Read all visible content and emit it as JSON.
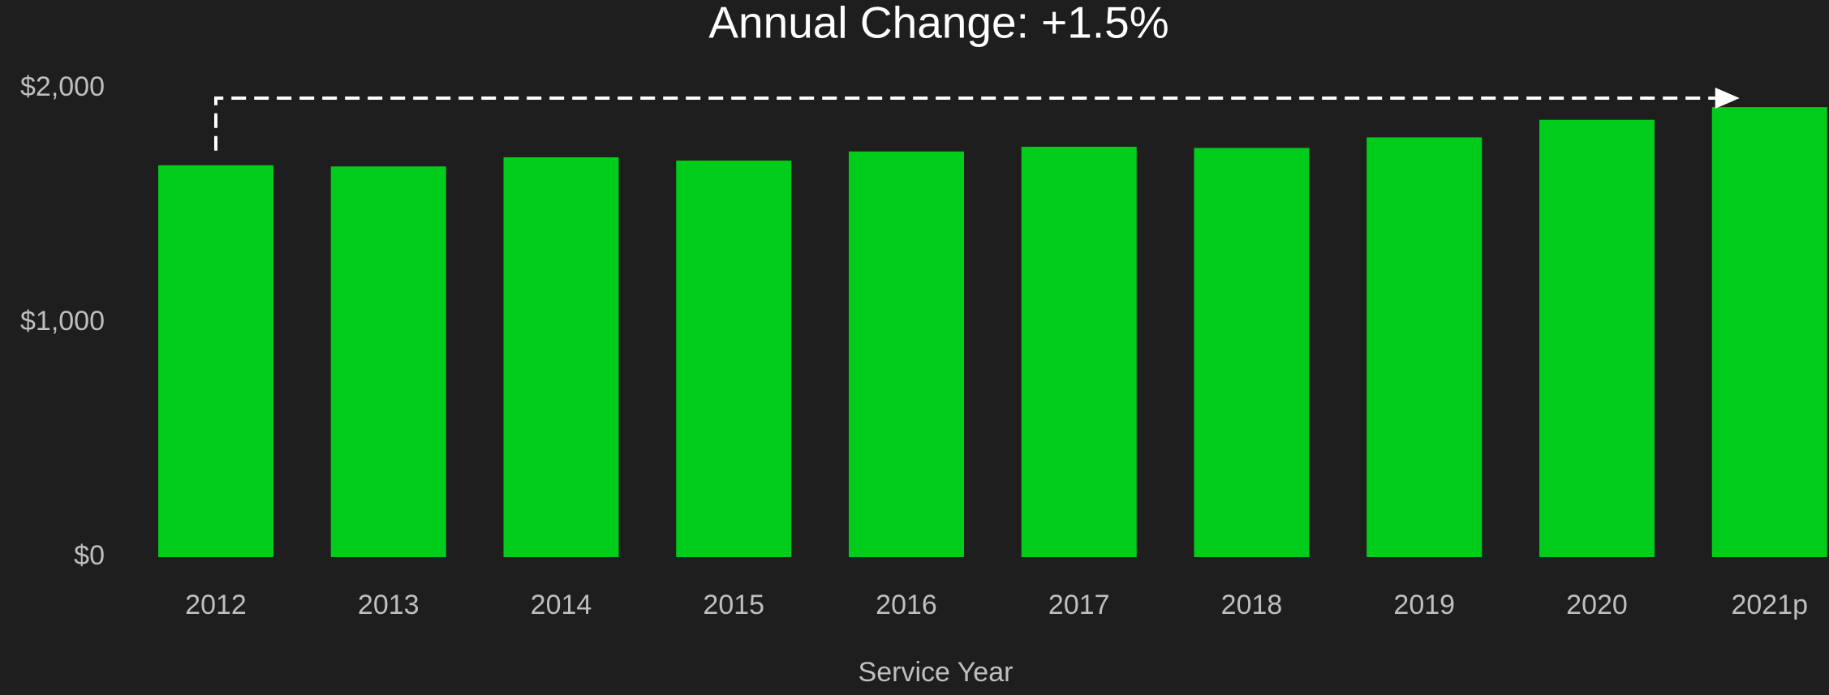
{
  "chart_data": {
    "type": "bar",
    "title": "Annual Change: +1.5%",
    "x_label": "Service Year",
    "categories": [
      "2012",
      "2013",
      "2014",
      "2015",
      "2016",
      "2017",
      "2018",
      "2019",
      "2020",
      "2021p"
    ],
    "values": [
      1672,
      1667,
      1706,
      1692,
      1731,
      1751,
      1746,
      1791,
      1866,
      1920
    ],
    "color": "#00cc1b",
    "ylim": [
      0,
      2000
    ],
    "yticks": [
      {
        "value": 0,
        "label": "$0"
      },
      {
        "value": 1000,
        "label": "$1,000"
      },
      {
        "value": 2000,
        "label": "$2,000"
      }
    ],
    "grid": false
  }
}
